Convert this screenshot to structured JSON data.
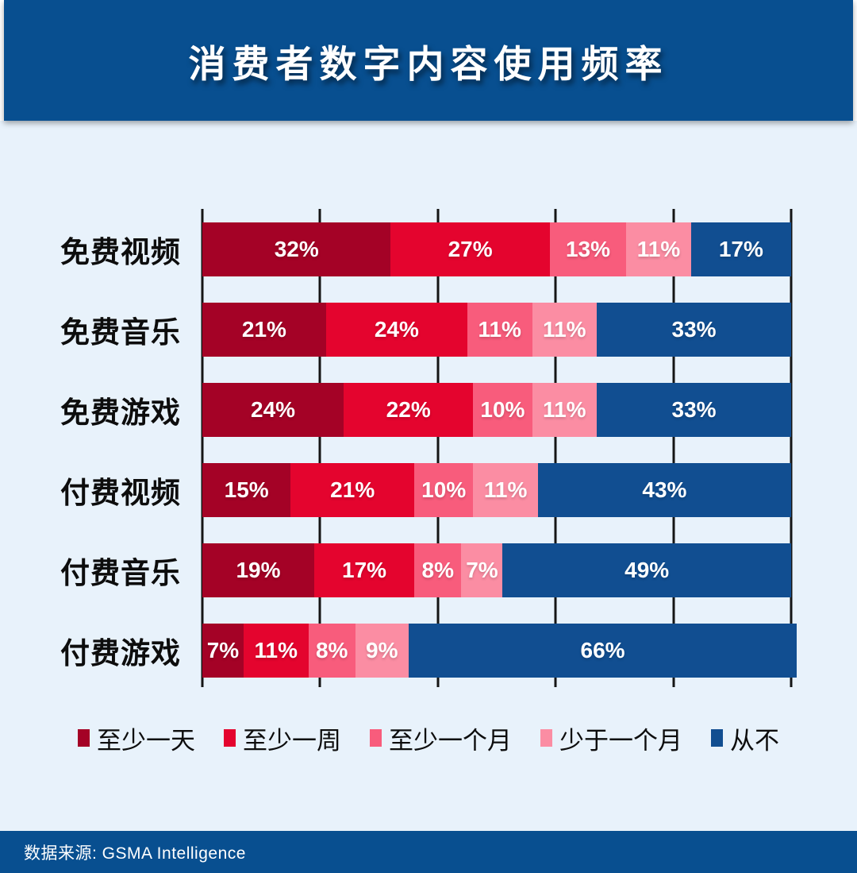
{
  "title": "消费者数字内容使用频率",
  "footer": {
    "source": "数据来源: GSMA Intelligence"
  },
  "colors": {
    "banner": "#084F90",
    "body_background": "#E8F2FB",
    "gridline": "#151515",
    "footer": "#084F90"
  },
  "chart_data": {
    "type": "bar",
    "orientation": "horizontal",
    "stacked": true,
    "title": "消费者数字内容使用频率",
    "categories": [
      "免费视频",
      "免费音乐",
      "免费游戏",
      "付费视频",
      "付费音乐",
      "付费游戏"
    ],
    "series": [
      {
        "name": "至少一天",
        "color": "#A40226",
        "values": [
          32,
          21,
          24,
          15,
          19,
          7
        ]
      },
      {
        "name": "至少一周",
        "color": "#E4042E",
        "values": [
          27,
          24,
          22,
          21,
          17,
          11
        ]
      },
      {
        "name": "至少一个月",
        "color": "#F85C7C",
        "values": [
          13,
          11,
          10,
          10,
          8,
          8
        ]
      },
      {
        "name": "少于一个月",
        "color": "#FB8DA3",
        "values": [
          11,
          11,
          11,
          11,
          7,
          9
        ]
      },
      {
        "name": "从不",
        "color": "#114E91",
        "values": [
          17,
          33,
          33,
          43,
          49,
          66
        ]
      }
    ],
    "value_suffix": "%",
    "xlim": [
      0,
      100
    ],
    "gridline_interval": 20,
    "grid": true,
    "legend_position": "bottom",
    "source": "GSMA Intelligence"
  }
}
